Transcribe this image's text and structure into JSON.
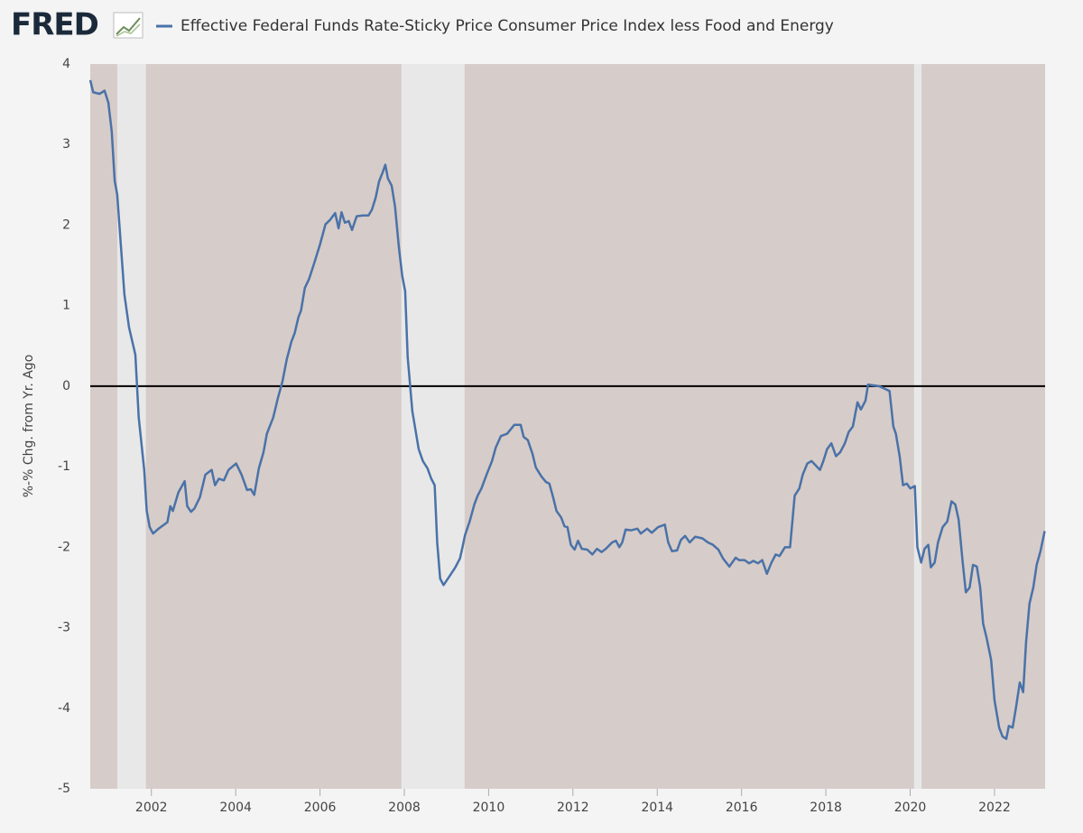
{
  "brand": "FRED",
  "chart_data": {
    "type": "line",
    "title": "Effective Federal Funds Rate-Sticky Price Consumer Price Index less Food and Energy",
    "ylabel": "%-% Chg. from Yr. Ago",
    "xlim": [
      2000.55,
      2023.2
    ],
    "xticks": [
      2002,
      2004,
      2006,
      2008,
      2010,
      2012,
      2014,
      2016,
      2018,
      2020,
      2022
    ],
    "ylim": [
      -5,
      4
    ],
    "yticks": [
      -5,
      -4,
      -3,
      -2,
      -1,
      0,
      1,
      2,
      3,
      4
    ],
    "reference_line": 0,
    "recessions": [
      [
        2001.19,
        2001.87
      ],
      [
        2007.93,
        2009.43
      ],
      [
        2020.09,
        2020.27
      ]
    ],
    "plot_background": "#d6ccc9",
    "recession_color": "#e8e8e8",
    "series": [
      {
        "name": "Effective Federal Funds Rate-Sticky Price Consumer Price Index less Food and Energy",
        "color": "#4a72a8",
        "x": [
          2000.55,
          2000.62,
          2000.77,
          2000.89,
          2000.98,
          2001.06,
          2001.13,
          2001.19,
          2001.26,
          2001.36,
          2001.47,
          2001.62,
          2001.7,
          2001.83,
          2001.89,
          2001.96,
          2002.04,
          2002.17,
          2002.3,
          2002.38,
          2002.45,
          2002.51,
          2002.64,
          2002.79,
          2002.85,
          2002.94,
          2003.02,
          2003.15,
          2003.28,
          2003.43,
          2003.51,
          2003.6,
          2003.72,
          2003.83,
          2004.01,
          2004.14,
          2004.27,
          2004.36,
          2004.44,
          2004.55,
          2004.66,
          2004.74,
          2004.89,
          2005.0,
          2005.11,
          2005.21,
          2005.32,
          2005.4,
          2005.49,
          2005.55,
          2005.64,
          2005.74,
          2005.87,
          2006.0,
          2006.13,
          2006.23,
          2006.36,
          2006.44,
          2006.51,
          2006.59,
          2006.68,
          2006.76,
          2006.87,
          2007.02,
          2007.15,
          2007.23,
          2007.32,
          2007.4,
          2007.49,
          2007.55,
          2007.61,
          2007.7,
          2007.78,
          2007.87,
          2007.95,
          2008.02,
          2008.08,
          2008.19,
          2008.34,
          2008.44,
          2008.55,
          2008.64,
          2008.72,
          2008.78,
          2008.85,
          2008.93,
          2009.06,
          2009.21,
          2009.32,
          2009.38,
          2009.44,
          2009.55,
          2009.66,
          2009.74,
          2009.83,
          2009.95,
          2010.08,
          2010.17,
          2010.29,
          2010.44,
          2010.61,
          2010.76,
          2010.83,
          2010.93,
          2011.04,
          2011.12,
          2011.25,
          2011.36,
          2011.44,
          2011.53,
          2011.61,
          2011.72,
          2011.8,
          2011.87,
          2011.95,
          2012.04,
          2012.12,
          2012.21,
          2012.34,
          2012.46,
          2012.57,
          2012.68,
          2012.78,
          2012.93,
          2013.02,
          2013.1,
          2013.17,
          2013.25,
          2013.38,
          2013.53,
          2013.61,
          2013.76,
          2013.87,
          2014.02,
          2014.18,
          2014.26,
          2014.35,
          2014.47,
          2014.56,
          2014.66,
          2014.77,
          2014.9,
          2015.07,
          2015.2,
          2015.32,
          2015.45,
          2015.56,
          2015.71,
          2015.86,
          2015.94,
          2016.07,
          2016.18,
          2016.28,
          2016.39,
          2016.49,
          2016.6,
          2016.71,
          2016.81,
          2016.9,
          2017.03,
          2017.15,
          2017.26,
          2017.37,
          2017.45,
          2017.56,
          2017.66,
          2017.77,
          2017.86,
          2017.94,
          2018.03,
          2018.13,
          2018.24,
          2018.34,
          2018.45,
          2018.54,
          2018.64,
          2018.75,
          2018.83,
          2018.94,
          2019.0,
          2019.13,
          2019.26,
          2019.39,
          2019.51,
          2019.6,
          2019.66,
          2019.75,
          2019.83,
          2019.92,
          2020.0,
          2020.11,
          2020.17,
          2020.26,
          2020.34,
          2020.43,
          2020.49,
          2020.58,
          2020.66,
          2020.77,
          2020.88,
          2020.98,
          2021.07,
          2021.15,
          2021.24,
          2021.32,
          2021.41,
          2021.49,
          2021.58,
          2021.66,
          2021.73,
          2021.81,
          2021.92,
          2022.0,
          2022.11,
          2022.19,
          2022.28,
          2022.34,
          2022.43,
          2022.51,
          2022.6,
          2022.68,
          2022.75,
          2022.83,
          2022.92,
          2023.0,
          2023.09,
          2023.19
        ],
        "values": [
          3.8,
          3.65,
          3.63,
          3.67,
          3.52,
          3.16,
          2.55,
          2.38,
          1.87,
          1.14,
          0.73,
          0.39,
          -0.39,
          -1.04,
          -1.55,
          -1.75,
          -1.83,
          -1.77,
          -1.72,
          -1.69,
          -1.49,
          -1.55,
          -1.32,
          -1.18,
          -1.49,
          -1.56,
          -1.52,
          -1.38,
          -1.1,
          -1.04,
          -1.23,
          -1.15,
          -1.17,
          -1.04,
          -0.96,
          -1.1,
          -1.29,
          -1.28,
          -1.35,
          -1.02,
          -0.82,
          -0.59,
          -0.39,
          -0.15,
          0.06,
          0.33,
          0.55,
          0.66,
          0.86,
          0.94,
          1.22,
          1.33,
          1.54,
          1.76,
          2.01,
          2.06,
          2.15,
          1.96,
          2.16,
          2.03,
          2.05,
          1.94,
          2.11,
          2.12,
          2.12,
          2.19,
          2.34,
          2.54,
          2.66,
          2.75,
          2.58,
          2.49,
          2.23,
          1.73,
          1.37,
          1.18,
          0.36,
          -0.31,
          -0.78,
          -0.93,
          -1.02,
          -1.15,
          -1.23,
          -1.94,
          -2.39,
          -2.47,
          -2.37,
          -2.25,
          -2.14,
          -2.0,
          -1.85,
          -1.68,
          -1.47,
          -1.36,
          -1.27,
          -1.1,
          -0.93,
          -0.76,
          -0.62,
          -0.59,
          -0.48,
          -0.48,
          -0.63,
          -0.67,
          -0.84,
          -1.01,
          -1.12,
          -1.19,
          -1.21,
          -1.38,
          -1.55,
          -1.63,
          -1.74,
          -1.75,
          -1.97,
          -2.03,
          -1.92,
          -2.02,
          -2.03,
          -2.09,
          -2.02,
          -2.06,
          -2.02,
          -1.94,
          -1.92,
          -2.0,
          -1.94,
          -1.78,
          -1.79,
          -1.77,
          -1.83,
          -1.77,
          -1.82,
          -1.75,
          -1.72,
          -1.94,
          -2.05,
          -2.04,
          -1.91,
          -1.86,
          -1.94,
          -1.87,
          -1.89,
          -1.94,
          -1.97,
          -2.03,
          -2.14,
          -2.24,
          -2.13,
          -2.16,
          -2.16,
          -2.2,
          -2.17,
          -2.2,
          -2.16,
          -2.33,
          -2.19,
          -2.09,
          -2.11,
          -2.0,
          -2.0,
          -1.36,
          -1.27,
          -1.1,
          -0.96,
          -0.93,
          -0.99,
          -1.04,
          -0.93,
          -0.78,
          -0.71,
          -0.87,
          -0.82,
          -0.71,
          -0.57,
          -0.5,
          -0.2,
          -0.29,
          -0.18,
          0.02,
          0.01,
          0.0,
          -0.03,
          -0.06,
          -0.5,
          -0.59,
          -0.87,
          -1.23,
          -1.21,
          -1.27,
          -1.24,
          -2.0,
          -2.19,
          -2.02,
          -1.97,
          -2.25,
          -2.19,
          -1.94,
          -1.75,
          -1.68,
          -1.43,
          -1.47,
          -1.66,
          -2.16,
          -2.56,
          -2.5,
          -2.22,
          -2.24,
          -2.5,
          -2.95,
          -3.12,
          -3.4,
          -3.9,
          -4.24,
          -4.35,
          -4.38,
          -4.22,
          -4.24,
          -3.99,
          -3.68,
          -3.8,
          -3.17,
          -2.7,
          -2.5,
          -2.22,
          -2.05,
          -1.8
        ]
      }
    ]
  }
}
